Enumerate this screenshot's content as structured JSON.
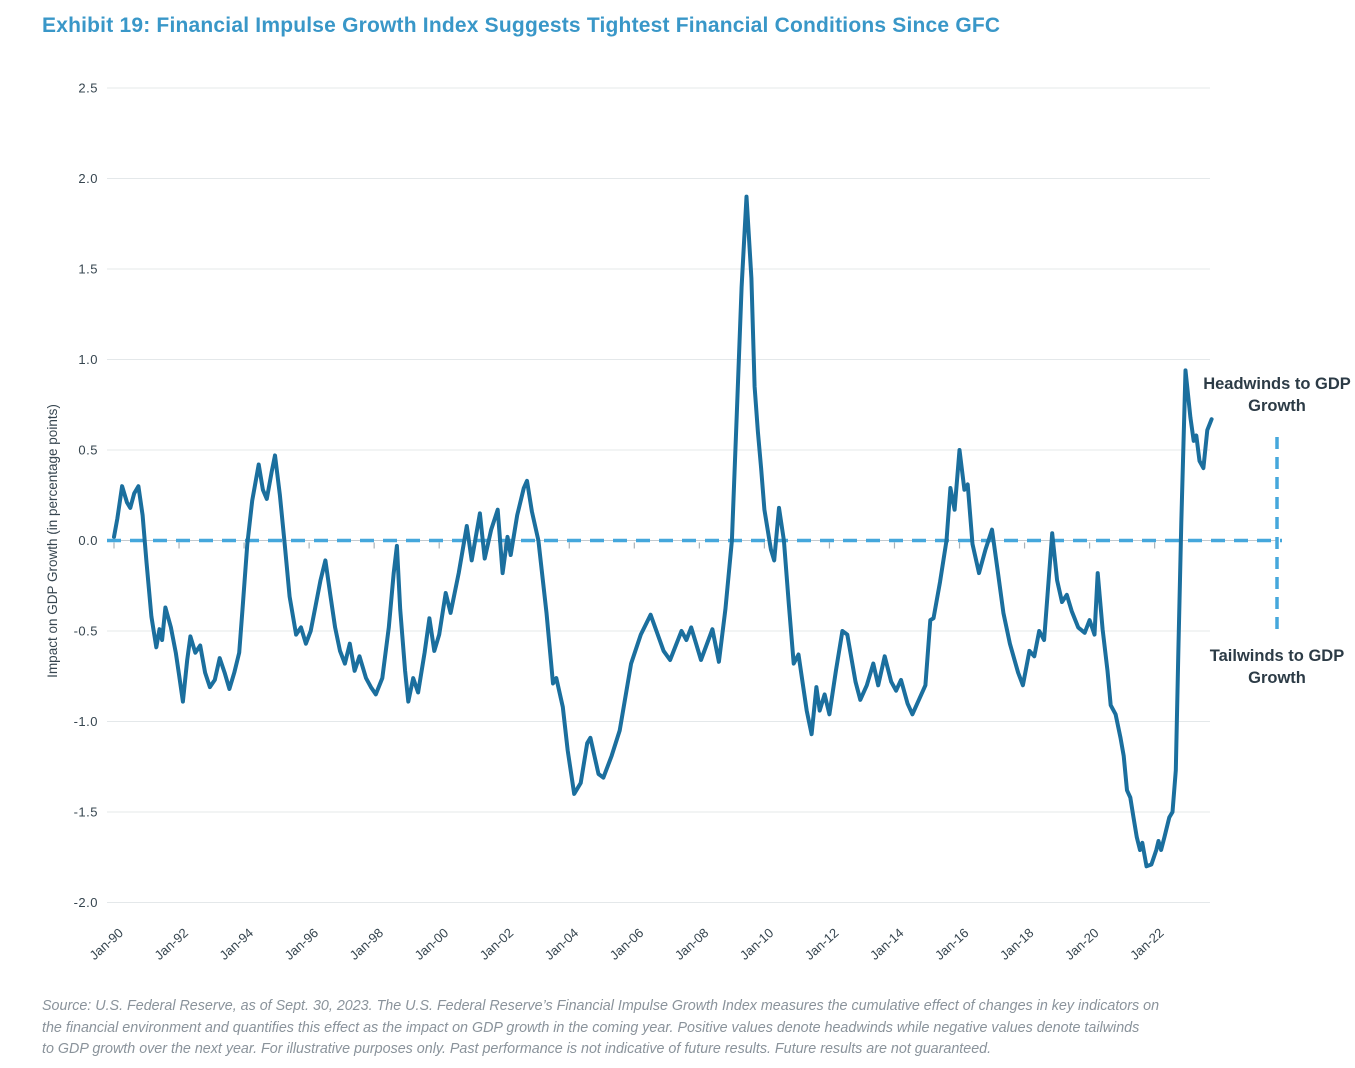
{
  "header": {
    "title": "Exhibit 19: Financial Impulse Growth Index Suggests Tightest Financial Conditions Since GFC",
    "title_color": "#3997C8"
  },
  "annotations": {
    "headwinds_label": "Headwinds to GDP Growth",
    "tailwinds_label": "Tailwinds to GDP Growth"
  },
  "footer": {
    "source_lines": [
      "Source: U.S. Federal Reserve, as of Sept. 30, 2023. The U.S. Federal Reserve’s Financial Impulse Growth Index measures the cumulative effect of changes in key indicators on",
      "the financial environment and quantifies this effect as the impact on GDP growth in the coming year. Positive values denote headwinds while negative values denote tailwinds",
      "to GDP growth over the next year. For illustrative purposes only. Past performance is not indicative of future results. Future results are not guaranteed."
    ]
  },
  "chart_data": {
    "type": "line",
    "title": "Exhibit 19: Financial Impulse Growth Index Suggests Tightest Financial Conditions Since GFC",
    "xlabel": "",
    "ylabel": "Impact on GDP Growth (in percentage points)",
    "ylim": [
      -2.0,
      2.5
    ],
    "x_range": [
      1990.0,
      2023.83
    ],
    "grid": true,
    "legend_position": "none",
    "style": {
      "line_color": "#1B6F9E",
      "dashed_color": "#45A7DC",
      "grid_color": "#E4E8EA",
      "zero_grid_color": "#C3CACF",
      "tick_color": "#A9B2B8",
      "axis_text_color": "#36454F"
    },
    "y_ticks": [
      {
        "label": "2.5",
        "value": 2.5
      },
      {
        "label": "2.0",
        "value": 2.0
      },
      {
        "label": "1.5",
        "value": 1.5
      },
      {
        "label": "1.0",
        "value": 1.0
      },
      {
        "label": "0.5",
        "value": 0.5
      },
      {
        "label": "0.0",
        "value": 0.0
      },
      {
        "label": "-0.5",
        "value": -0.5
      },
      {
        "label": "-1.0",
        "value": -1.0
      },
      {
        "label": "-1.5",
        "value": -1.5
      },
      {
        "label": "-2.0",
        "value": -2.0
      }
    ],
    "x_ticks": [
      {
        "label": "Jan-90",
        "year": 1990
      },
      {
        "label": "Jan-92",
        "year": 1992
      },
      {
        "label": "Jan-94",
        "year": 1994
      },
      {
        "label": "Jan-96",
        "year": 1996
      },
      {
        "label": "Jan-98",
        "year": 1998
      },
      {
        "label": "Jan-00",
        "year": 2000
      },
      {
        "label": "Jan-02",
        "year": 2002
      },
      {
        "label": "Jan-04",
        "year": 2004
      },
      {
        "label": "Jan-06",
        "year": 2006
      },
      {
        "label": "Jan-08",
        "year": 2008
      },
      {
        "label": "Jan-10",
        "year": 2010
      },
      {
        "label": "Jan-12",
        "year": 2012
      },
      {
        "label": "Jan-14",
        "year": 2014
      },
      {
        "label": "Jan-16",
        "year": 2016
      },
      {
        "label": "Jan-18",
        "year": 2018
      },
      {
        "label": "Jan-20",
        "year": 2020
      },
      {
        "label": "Jan-22",
        "year": 2022
      }
    ],
    "zero_reference_line": {
      "value": 0.0,
      "style": "dashed",
      "meaning_above": "Headwinds to GDP Growth",
      "meaning_below": "Tailwinds to GDP Growth"
    },
    "series": [
      {
        "name": "Financial Impulse Growth Index (impact on GDP growth, percentage points)",
        "color": "#1B6F9E",
        "points": [
          [
            1990.0,
            0.02
          ],
          [
            1990.1,
            0.12
          ],
          [
            1990.25,
            0.3
          ],
          [
            1990.4,
            0.21
          ],
          [
            1990.5,
            0.18
          ],
          [
            1990.62,
            0.26
          ],
          [
            1990.75,
            0.3
          ],
          [
            1990.88,
            0.14
          ],
          [
            1991.0,
            -0.12
          ],
          [
            1991.15,
            -0.42
          ],
          [
            1991.3,
            -0.59
          ],
          [
            1991.4,
            -0.49
          ],
          [
            1991.48,
            -0.55
          ],
          [
            1991.58,
            -0.37
          ],
          [
            1991.75,
            -0.48
          ],
          [
            1991.9,
            -0.62
          ],
          [
            1992.0,
            -0.74
          ],
          [
            1992.12,
            -0.89
          ],
          [
            1992.25,
            -0.66
          ],
          [
            1992.35,
            -0.53
          ],
          [
            1992.5,
            -0.62
          ],
          [
            1992.65,
            -0.58
          ],
          [
            1992.8,
            -0.73
          ],
          [
            1992.95,
            -0.81
          ],
          [
            1993.1,
            -0.77
          ],
          [
            1993.25,
            -0.65
          ],
          [
            1993.4,
            -0.73
          ],
          [
            1993.55,
            -0.82
          ],
          [
            1993.7,
            -0.73
          ],
          [
            1993.85,
            -0.62
          ],
          [
            1993.95,
            -0.38
          ],
          [
            1994.1,
            -0.02
          ],
          [
            1994.25,
            0.22
          ],
          [
            1994.45,
            0.42
          ],
          [
            1994.58,
            0.28
          ],
          [
            1994.7,
            0.23
          ],
          [
            1994.85,
            0.38
          ],
          [
            1994.95,
            0.47
          ],
          [
            1995.1,
            0.25
          ],
          [
            1995.25,
            -0.02
          ],
          [
            1995.4,
            -0.31
          ],
          [
            1995.6,
            -0.52
          ],
          [
            1995.75,
            -0.48
          ],
          [
            1995.9,
            -0.57
          ],
          [
            1996.05,
            -0.5
          ],
          [
            1996.2,
            -0.36
          ],
          [
            1996.35,
            -0.22
          ],
          [
            1996.5,
            -0.11
          ],
          [
            1996.65,
            -0.3
          ],
          [
            1996.8,
            -0.48
          ],
          [
            1996.95,
            -0.61
          ],
          [
            1997.1,
            -0.68
          ],
          [
            1997.25,
            -0.57
          ],
          [
            1997.4,
            -0.72
          ],
          [
            1997.55,
            -0.64
          ],
          [
            1997.75,
            -0.76
          ],
          [
            1997.9,
            -0.81
          ],
          [
            1998.05,
            -0.85
          ],
          [
            1998.25,
            -0.76
          ],
          [
            1998.45,
            -0.48
          ],
          [
            1998.6,
            -0.18
          ],
          [
            1998.7,
            -0.03
          ],
          [
            1998.8,
            -0.38
          ],
          [
            1998.95,
            -0.72
          ],
          [
            1999.05,
            -0.89
          ],
          [
            1999.2,
            -0.76
          ],
          [
            1999.35,
            -0.84
          ],
          [
            1999.55,
            -0.62
          ],
          [
            1999.7,
            -0.43
          ],
          [
            1999.85,
            -0.61
          ],
          [
            2000.0,
            -0.52
          ],
          [
            2000.2,
            -0.29
          ],
          [
            2000.35,
            -0.4
          ],
          [
            2000.6,
            -0.18
          ],
          [
            2000.85,
            0.08
          ],
          [
            2001.0,
            -0.11
          ],
          [
            2001.25,
            0.15
          ],
          [
            2001.4,
            -0.1
          ],
          [
            2001.6,
            0.06
          ],
          [
            2001.8,
            0.17
          ],
          [
            2001.95,
            -0.18
          ],
          [
            2002.1,
            0.02
          ],
          [
            2002.2,
            -0.08
          ],
          [
            2002.4,
            0.14
          ],
          [
            2002.6,
            0.29
          ],
          [
            2002.7,
            0.33
          ],
          [
            2002.85,
            0.16
          ],
          [
            2003.05,
            0.0
          ],
          [
            2003.3,
            -0.4
          ],
          [
            2003.5,
            -0.79
          ],
          [
            2003.6,
            -0.76
          ],
          [
            2003.8,
            -0.92
          ],
          [
            2003.95,
            -1.16
          ],
          [
            2004.15,
            -1.4
          ],
          [
            2004.35,
            -1.34
          ],
          [
            2004.55,
            -1.12
          ],
          [
            2004.65,
            -1.09
          ],
          [
            2004.9,
            -1.29
          ],
          [
            2005.05,
            -1.31
          ],
          [
            2005.3,
            -1.19
          ],
          [
            2005.55,
            -1.05
          ],
          [
            2005.9,
            -0.68
          ],
          [
            2006.2,
            -0.52
          ],
          [
            2006.5,
            -0.41
          ],
          [
            2006.9,
            -0.61
          ],
          [
            2007.1,
            -0.66
          ],
          [
            2007.45,
            -0.5
          ],
          [
            2007.6,
            -0.55
          ],
          [
            2007.75,
            -0.48
          ],
          [
            2008.05,
            -0.66
          ],
          [
            2008.4,
            -0.49
          ],
          [
            2008.6,
            -0.67
          ],
          [
            2008.8,
            -0.38
          ],
          [
            2009.0,
            0.0
          ],
          [
            2009.15,
            0.7
          ],
          [
            2009.3,
            1.4
          ],
          [
            2009.45,
            1.9
          ],
          [
            2009.6,
            1.45
          ],
          [
            2009.7,
            0.85
          ],
          [
            2009.8,
            0.6
          ],
          [
            2009.9,
            0.4
          ],
          [
            2010.0,
            0.17
          ],
          [
            2010.2,
            -0.05
          ],
          [
            2010.3,
            -0.11
          ],
          [
            2010.45,
            0.18
          ],
          [
            2010.6,
            0.0
          ],
          [
            2010.75,
            -0.35
          ],
          [
            2010.9,
            -0.68
          ],
          [
            2011.05,
            -0.63
          ],
          [
            2011.3,
            -0.94
          ],
          [
            2011.45,
            -1.07
          ],
          [
            2011.6,
            -0.81
          ],
          [
            2011.7,
            -0.94
          ],
          [
            2011.85,
            -0.85
          ],
          [
            2012.0,
            -0.96
          ],
          [
            2012.2,
            -0.72
          ],
          [
            2012.4,
            -0.5
          ],
          [
            2012.55,
            -0.52
          ],
          [
            2012.8,
            -0.78
          ],
          [
            2012.95,
            -0.88
          ],
          [
            2013.15,
            -0.8
          ],
          [
            2013.35,
            -0.68
          ],
          [
            2013.5,
            -0.8
          ],
          [
            2013.7,
            -0.64
          ],
          [
            2013.9,
            -0.78
          ],
          [
            2014.05,
            -0.83
          ],
          [
            2014.2,
            -0.77
          ],
          [
            2014.4,
            -0.9
          ],
          [
            2014.55,
            -0.96
          ],
          [
            2014.75,
            -0.88
          ],
          [
            2014.95,
            -0.8
          ],
          [
            2015.1,
            -0.44
          ],
          [
            2015.2,
            -0.43
          ],
          [
            2015.4,
            -0.23
          ],
          [
            2015.6,
            0.0
          ],
          [
            2015.72,
            0.29
          ],
          [
            2015.85,
            0.17
          ],
          [
            2016.0,
            0.5
          ],
          [
            2016.15,
            0.28
          ],
          [
            2016.25,
            0.31
          ],
          [
            2016.4,
            -0.02
          ],
          [
            2016.6,
            -0.18
          ],
          [
            2016.8,
            -0.05
          ],
          [
            2017.0,
            0.06
          ],
          [
            2017.2,
            -0.2
          ],
          [
            2017.35,
            -0.4
          ],
          [
            2017.55,
            -0.57
          ],
          [
            2017.8,
            -0.73
          ],
          [
            2017.95,
            -0.8
          ],
          [
            2018.15,
            -0.61
          ],
          [
            2018.3,
            -0.64
          ],
          [
            2018.45,
            -0.5
          ],
          [
            2018.6,
            -0.55
          ],
          [
            2018.85,
            0.04
          ],
          [
            2019.0,
            -0.22
          ],
          [
            2019.15,
            -0.34
          ],
          [
            2019.3,
            -0.3
          ],
          [
            2019.45,
            -0.39
          ],
          [
            2019.65,
            -0.48
          ],
          [
            2019.85,
            -0.51
          ],
          [
            2020.0,
            -0.44
          ],
          [
            2020.15,
            -0.52
          ],
          [
            2020.25,
            -0.18
          ],
          [
            2020.4,
            -0.49
          ],
          [
            2020.55,
            -0.72
          ],
          [
            2020.65,
            -0.91
          ],
          [
            2020.8,
            -0.96
          ],
          [
            2020.95,
            -1.09
          ],
          [
            2021.05,
            -1.19
          ],
          [
            2021.15,
            -1.38
          ],
          [
            2021.25,
            -1.42
          ],
          [
            2021.35,
            -1.53
          ],
          [
            2021.45,
            -1.64
          ],
          [
            2021.55,
            -1.71
          ],
          [
            2021.62,
            -1.67
          ],
          [
            2021.75,
            -1.8
          ],
          [
            2021.9,
            -1.79
          ],
          [
            2022.05,
            -1.71
          ],
          [
            2022.12,
            -1.66
          ],
          [
            2022.2,
            -1.71
          ],
          [
            2022.3,
            -1.64
          ],
          [
            2022.45,
            -1.53
          ],
          [
            2022.55,
            -1.5
          ],
          [
            2022.65,
            -1.27
          ],
          [
            2022.73,
            -0.6
          ],
          [
            2022.82,
            0.1
          ],
          [
            2022.95,
            0.94
          ],
          [
            2023.1,
            0.68
          ],
          [
            2023.2,
            0.55
          ],
          [
            2023.28,
            0.58
          ],
          [
            2023.38,
            0.44
          ],
          [
            2023.5,
            0.4
          ],
          [
            2023.62,
            0.61
          ],
          [
            2023.75,
            0.67
          ]
        ]
      }
    ]
  }
}
